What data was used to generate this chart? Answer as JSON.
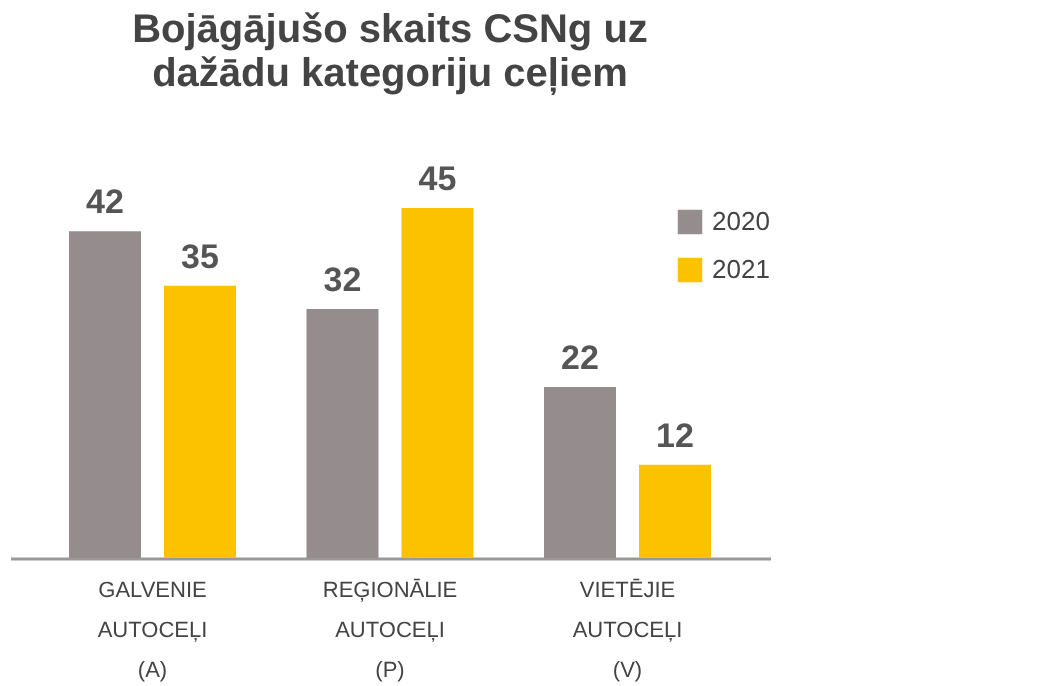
{
  "chart_data": {
    "type": "bar",
    "title": "Bojāgājušo skaits CSNg uz dažādu kategoriju ceļiem",
    "categories": [
      "GALVENIE AUTOCEĻI (A)",
      "REĢIONĀLIE AUTOCEĻI (P)",
      "VIETĒJIE AUTOCEĻI (V)"
    ],
    "series": [
      {
        "name": "2020",
        "color": "#958d8d",
        "values": [
          42,
          32,
          22
        ]
      },
      {
        "name": "2021",
        "color": "#fcc200",
        "values": [
          35,
          45,
          12
        ]
      }
    ],
    "data_labels": true,
    "legend": "top right",
    "grid": false
  }
}
